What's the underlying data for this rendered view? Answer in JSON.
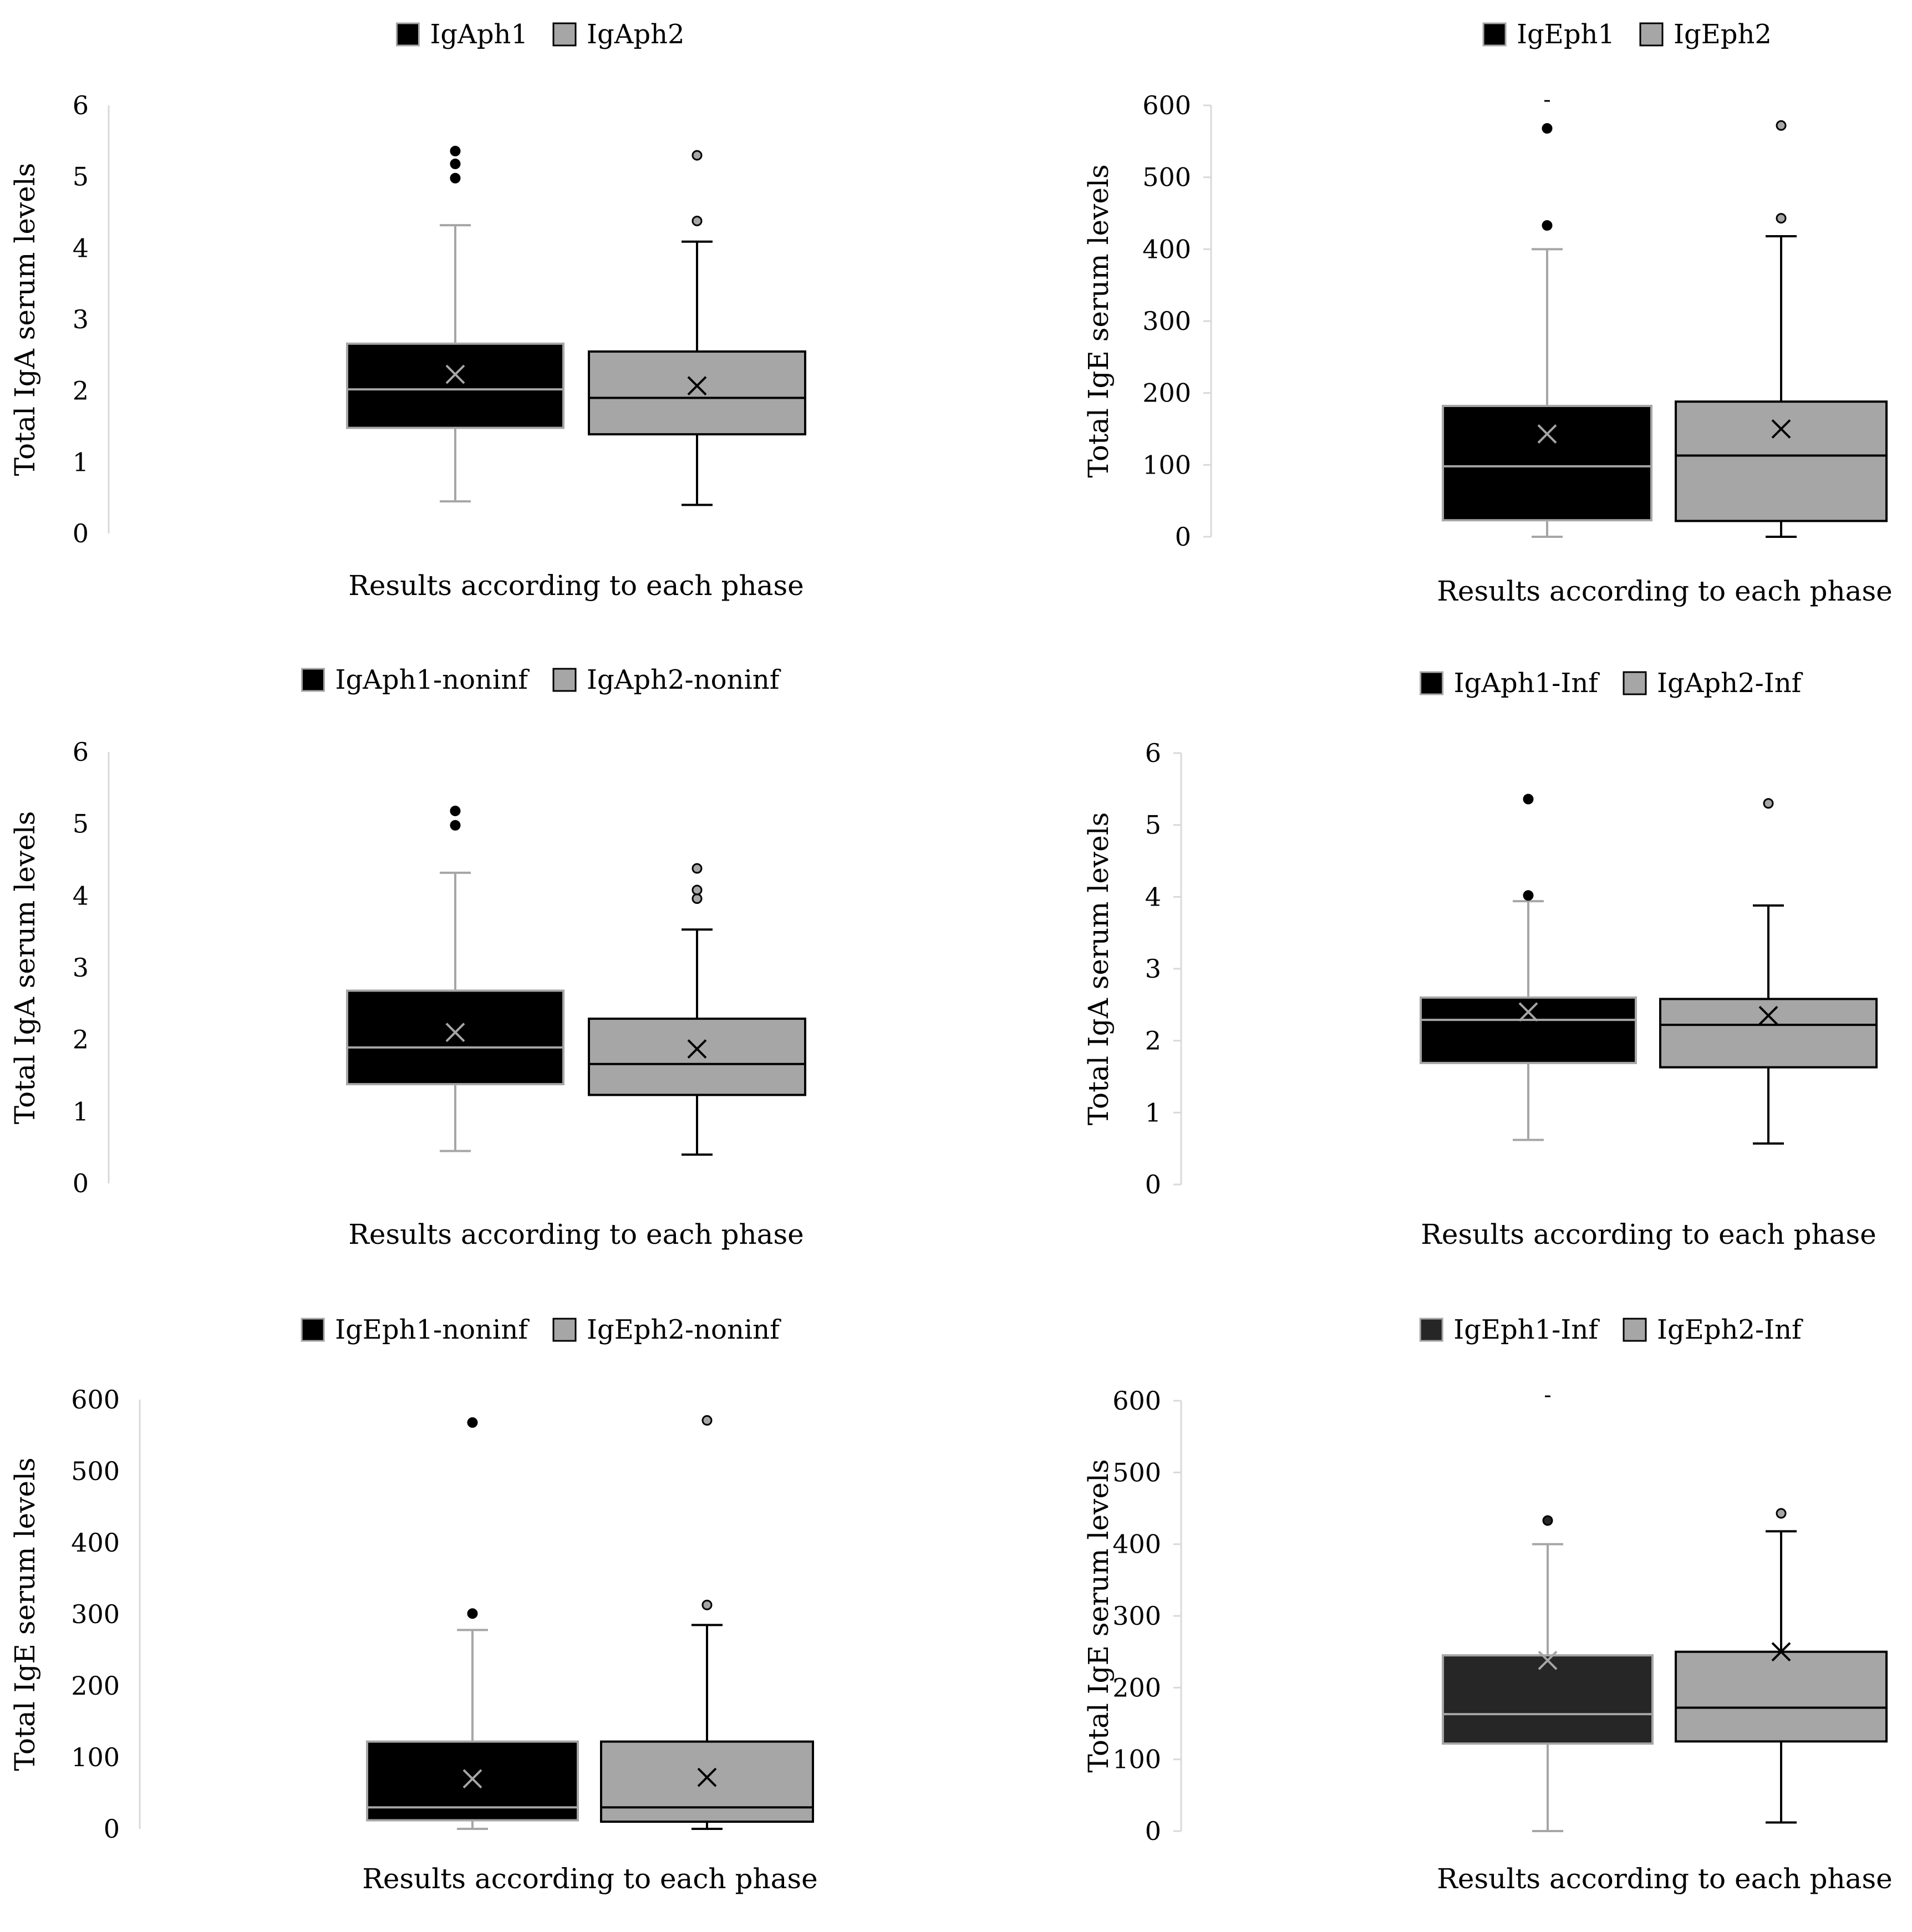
{
  "colors": {
    "black_fill": "#000000",
    "gray_fill": "#a6a6a6",
    "dark_fill": "#262626",
    "gray_line": "#a6a6a6",
    "black_line": "#000000",
    "axis_line": "#d9d9d9"
  },
  "chart_data": [
    {
      "type": "boxplot",
      "title": "",
      "xlabel": "Results according to each phase",
      "ylabel": "Total IgA serum levels",
      "ylim": [
        0,
        6
      ],
      "yticks": [
        0,
        1,
        2,
        3,
        4,
        5,
        6
      ],
      "legend_position": "top-center",
      "series": [
        {
          "name": "IgAph1",
          "fill": "#000000",
          "line": "#a6a6a6",
          "min": 0.45,
          "q1": 1.48,
          "median": 2.02,
          "q3": 2.66,
          "max": 4.32,
          "mean": 2.23,
          "outliers": [
            4.98,
            5.18,
            5.36
          ]
        },
        {
          "name": "IgAph2",
          "fill": "#a6a6a6",
          "line": "#000000",
          "min": 0.4,
          "q1": 1.39,
          "median": 1.9,
          "q3": 2.55,
          "max": 4.09,
          "mean": 2.07,
          "outliers": [
            4.38,
            5.3
          ]
        }
      ]
    },
    {
      "type": "boxplot",
      "title": "",
      "xlabel": "Results according to each phase",
      "ylabel": "Total IgE serum levels",
      "ylim": [
        0,
        600
      ],
      "yticks": [
        0,
        100,
        200,
        300,
        400,
        500,
        600
      ],
      "legend_position": "top-center",
      "series": [
        {
          "name": "IgEph1",
          "fill": "#000000",
          "line": "#a6a6a6",
          "min": 0,
          "q1": 23,
          "median": 98,
          "q3": 182,
          "max": 400,
          "mean": 143,
          "outliers": [
            433,
            568,
            605
          ]
        },
        {
          "name": "IgEph2",
          "fill": "#a6a6a6",
          "line": "#000000",
          "min": 0,
          "q1": 22,
          "median": 113,
          "q3": 188,
          "max": 418,
          "mean": 150,
          "outliers": [
            443,
            572
          ]
        }
      ]
    },
    {
      "type": "boxplot",
      "title": "",
      "xlabel": "Results according to each phase",
      "ylabel": "Total IgA serum levels",
      "ylim": [
        0,
        6
      ],
      "yticks": [
        0,
        1,
        2,
        3,
        4,
        5,
        6
      ],
      "legend_position": "top-center",
      "series": [
        {
          "name": "IgAph1-noninf",
          "fill": "#000000",
          "line": "#a6a6a6",
          "min": 0.45,
          "q1": 1.38,
          "median": 1.89,
          "q3": 2.68,
          "max": 4.32,
          "mean": 2.1,
          "outliers": [
            4.98,
            5.18
          ]
        },
        {
          "name": "IgAph2-noninf",
          "fill": "#a6a6a6",
          "line": "#000000",
          "min": 0.4,
          "q1": 1.23,
          "median": 1.66,
          "q3": 2.29,
          "max": 3.53,
          "mean": 1.87,
          "outliers": [
            3.96,
            4.08,
            4.38
          ]
        }
      ]
    },
    {
      "type": "boxplot",
      "title": "",
      "xlabel": "Results according to each phase",
      "ylabel": "Total IgA serum levels",
      "ylim": [
        0,
        6
      ],
      "yticks": [
        0,
        1,
        2,
        3,
        4,
        5,
        6
      ],
      "legend_position": "top-center",
      "series": [
        {
          "name": "IgAph1-Inf",
          "fill": "#000000",
          "line": "#a6a6a6",
          "min": 0.62,
          "q1": 1.69,
          "median": 2.29,
          "q3": 2.6,
          "max": 3.94,
          "mean": 2.4,
          "outliers": [
            4.02,
            5.36
          ]
        },
        {
          "name": "IgAph2-Inf",
          "fill": "#a6a6a6",
          "line": "#000000",
          "min": 0.57,
          "q1": 1.63,
          "median": 2.22,
          "q3": 2.58,
          "max": 3.88,
          "mean": 2.35,
          "outliers": [
            5.3
          ]
        }
      ]
    },
    {
      "type": "boxplot",
      "title": "",
      "xlabel": "Results according to each phase",
      "ylabel": "Total IgE serum levels",
      "ylim": [
        0,
        600
      ],
      "yticks": [
        0,
        100,
        200,
        300,
        400,
        500,
        600
      ],
      "legend_position": "top-center",
      "series": [
        {
          "name": "IgEph1-noninf",
          "fill": "#000000",
          "line": "#a6a6a6",
          "min": 0,
          "q1": 12,
          "median": 30,
          "q3": 122,
          "max": 278,
          "mean": 70,
          "outliers": [
            301,
            568
          ]
        },
        {
          "name": "IgEph2-noninf",
          "fill": "#a6a6a6",
          "line": "#000000",
          "min": 0,
          "q1": 10,
          "median": 30,
          "q3": 122,
          "max": 285,
          "mean": 72,
          "outliers": [
            313,
            571
          ]
        }
      ]
    },
    {
      "type": "boxplot",
      "title": "",
      "xlabel": "Results according to each phase",
      "ylabel": "Total IgE serum levels",
      "ylim": [
        0,
        600
      ],
      "yticks": [
        0,
        100,
        200,
        300,
        400,
        500,
        600
      ],
      "legend_position": "top-center",
      "series": [
        {
          "name": "IgEph1-Inf",
          "fill": "#262626",
          "line": "#a6a6a6",
          "min": 0,
          "q1": 122,
          "median": 163,
          "q3": 245,
          "max": 400,
          "mean": 238,
          "outliers": [
            433,
            605
          ]
        },
        {
          "name": "IgEph2-Inf",
          "fill": "#a6a6a6",
          "line": "#000000",
          "min": 12,
          "q1": 125,
          "median": 172,
          "q3": 250,
          "max": 418,
          "mean": 250,
          "outliers": [
            443
          ]
        }
      ]
    }
  ]
}
